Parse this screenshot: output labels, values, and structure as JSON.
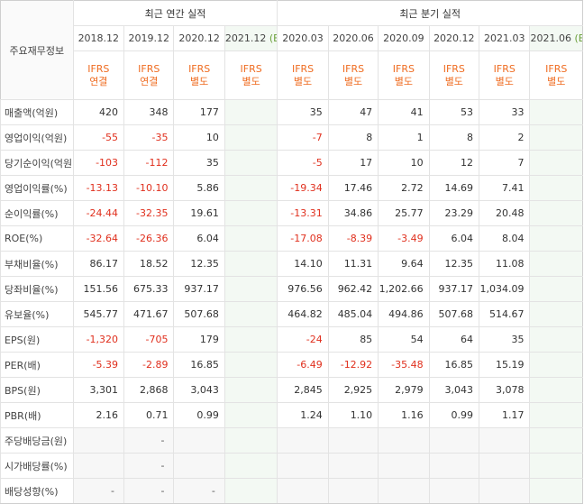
{
  "header": {
    "corner": "주요재무정보",
    "annual_title": "최근 연간 실적",
    "quarter_title": "최근 분기 실적",
    "periods": [
      {
        "label": "2018.12",
        "est": "",
        "std1": "IFRS",
        "std2": "연결"
      },
      {
        "label": "2019.12",
        "est": "",
        "std1": "IFRS",
        "std2": "연결"
      },
      {
        "label": "2020.12",
        "est": "",
        "std1": "IFRS",
        "std2": "별도"
      },
      {
        "label": "2021.12",
        "est": "(E)",
        "std1": "IFRS",
        "std2": "별도"
      },
      {
        "label": "2020.03",
        "est": "",
        "std1": "IFRS",
        "std2": "별도"
      },
      {
        "label": "2020.06",
        "est": "",
        "std1": "IFRS",
        "std2": "별도"
      },
      {
        "label": "2020.09",
        "est": "",
        "std1": "IFRS",
        "std2": "별도"
      },
      {
        "label": "2020.12",
        "est": "",
        "std1": "IFRS",
        "std2": "별도"
      },
      {
        "label": "2021.03",
        "est": "",
        "std1": "IFRS",
        "std2": "별도"
      },
      {
        "label": "2021.06",
        "est": "(E)",
        "std1": "IFRS",
        "std2": "별도"
      }
    ]
  },
  "rows": [
    {
      "label": "매출액(억원)",
      "group_start": true,
      "values": [
        "420",
        "348",
        "177",
        "",
        "35",
        "47",
        "41",
        "53",
        "33",
        ""
      ]
    },
    {
      "label": "영업이익(억원)",
      "values": [
        "-55",
        "-35",
        "10",
        "",
        "-7",
        "8",
        "1",
        "8",
        "2",
        ""
      ]
    },
    {
      "label": "당기순이익(억원)",
      "values": [
        "-103",
        "-112",
        "35",
        "",
        "-5",
        "17",
        "10",
        "12",
        "7",
        ""
      ]
    },
    {
      "label": "영업이익률(%)",
      "group_start": true,
      "values": [
        "-13.13",
        "-10.10",
        "5.86",
        "",
        "-19.34",
        "17.46",
        "2.72",
        "14.69",
        "7.41",
        ""
      ]
    },
    {
      "label": "순이익률(%)",
      "values": [
        "-24.44",
        "-32.35",
        "19.61",
        "",
        "-13.31",
        "34.86",
        "25.77",
        "23.29",
        "20.48",
        ""
      ]
    },
    {
      "label": "ROE(%)",
      "values": [
        "-32.64",
        "-26.36",
        "6.04",
        "",
        "-17.08",
        "-8.39",
        "-3.49",
        "6.04",
        "8.04",
        ""
      ]
    },
    {
      "label": "부채비율(%)",
      "group_start": true,
      "values": [
        "86.17",
        "18.52",
        "12.35",
        "",
        "14.10",
        "11.31",
        "9.64",
        "12.35",
        "11.08",
        ""
      ]
    },
    {
      "label": "당좌비율(%)",
      "values": [
        "151.56",
        "675.33",
        "937.17",
        "",
        "976.56",
        "962.42",
        "1,202.66",
        "937.17",
        "1,034.09",
        ""
      ]
    },
    {
      "label": "유보율(%)",
      "values": [
        "545.77",
        "471.67",
        "507.68",
        "",
        "464.82",
        "485.04",
        "494.86",
        "507.68",
        "514.67",
        ""
      ]
    },
    {
      "label": "EPS(원)",
      "group_start": true,
      "values": [
        "-1,320",
        "-705",
        "179",
        "",
        "-24",
        "85",
        "54",
        "64",
        "35",
        ""
      ]
    },
    {
      "label": "PER(배)",
      "values": [
        "-5.39",
        "-2.89",
        "16.85",
        "",
        "-6.49",
        "-12.92",
        "-35.48",
        "16.85",
        "15.19",
        ""
      ]
    },
    {
      "label": "BPS(원)",
      "values": [
        "3,301",
        "2,868",
        "3,043",
        "",
        "2,845",
        "2,925",
        "2,979",
        "3,043",
        "3,078",
        ""
      ]
    },
    {
      "label": "PBR(배)",
      "values": [
        "2.16",
        "0.71",
        "0.99",
        "",
        "1.24",
        "1.10",
        "1.16",
        "0.99",
        "1.17",
        ""
      ]
    },
    {
      "label": "주당배당금(원)",
      "group_start": true,
      "shaded": true,
      "values": [
        "",
        "-",
        "",
        "",
        "",
        "",
        "",
        "",
        "",
        ""
      ]
    },
    {
      "label": "시가배당률(%)",
      "shaded": true,
      "values": [
        "",
        "-",
        "",
        "",
        "",
        "",
        "",
        "",
        "",
        ""
      ]
    },
    {
      "label": "배당성향(%)",
      "shaded": true,
      "values": [
        "-",
        "-",
        "-",
        "",
        "",
        "",
        "",
        "",
        "",
        ""
      ]
    }
  ]
}
